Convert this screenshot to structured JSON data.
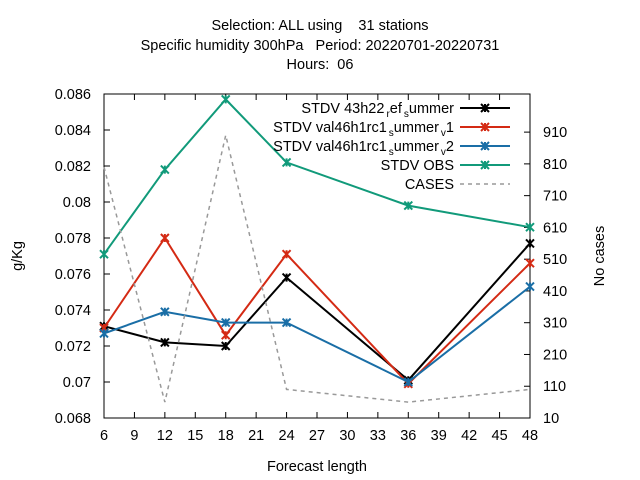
{
  "chart_data": {
    "type": "line",
    "title_lines": [
      "Selection: ALL using    31 stations",
      "Specific humidity 300hPa   Period: 20220701-20220731",
      "Hours:  06"
    ],
    "xlabel": "Forecast length",
    "ylabel": "g/Kg",
    "y2label": "No cases",
    "x_ticks": [
      6,
      9,
      12,
      15,
      18,
      21,
      24,
      27,
      30,
      33,
      36,
      39,
      42,
      45,
      48
    ],
    "xlim": [
      6,
      48
    ],
    "ylim": [
      0.068,
      0.086
    ],
    "y_ticks": [
      0.068,
      0.07,
      0.072,
      0.074,
      0.076,
      0.078,
      0.08,
      0.082,
      0.084,
      0.086
    ],
    "y_tick_labels": [
      "0.068",
      "0.07",
      "0.072",
      "0.074",
      "0.076",
      "0.078",
      "0.08",
      "0.082",
      "0.084",
      "0.086"
    ],
    "y2lim": [
      10,
      1030
    ],
    "y2_ticks": [
      10,
      110,
      210,
      310,
      410,
      510,
      610,
      710,
      810,
      910
    ],
    "grid": false,
    "legend_position": "top-right",
    "x": [
      6,
      12,
      18,
      24,
      36,
      48
    ],
    "series": [
      {
        "name": "STDV 43h22_ref_summer",
        "legend": [
          "STDV 43h22",
          "r",
          "ef",
          "s",
          "ummer"
        ],
        "color": "#000000",
        "marker": "x",
        "dash": false,
        "axis": "y",
        "values": [
          0.0731,
          0.0722,
          0.072,
          0.0758,
          0.0701,
          0.0777
        ]
      },
      {
        "name": "STDV val46h1rc1_summer_v1",
        "legend": [
          "STDV val46h1rc1",
          "s",
          "ummer",
          "v",
          "1"
        ],
        "color": "#d42a14",
        "marker": "x",
        "dash": false,
        "axis": "y",
        "values": [
          0.073,
          0.078,
          0.0726,
          0.0771,
          0.0699,
          0.0766
        ]
      },
      {
        "name": "STDV val46h1rc1_summer_v2",
        "legend": [
          "STDV val46h1rc1",
          "s",
          "ummer",
          "v",
          "2"
        ],
        "color": "#1a6ea6",
        "marker": "x",
        "dash": false,
        "axis": "y",
        "values": [
          0.0727,
          0.0739,
          0.0733,
          0.0733,
          0.07,
          0.0753
        ]
      },
      {
        "name": "STDV OBS",
        "legend": [
          "STDV OBS"
        ],
        "color": "#119a7a",
        "marker": "x",
        "dash": false,
        "axis": "y",
        "values": [
          0.0771,
          0.0818,
          0.0857,
          0.0822,
          0.0798,
          0.0786
        ]
      },
      {
        "name": "CASES",
        "legend": [
          "CASES"
        ],
        "color": "#999999",
        "marker": "none",
        "dash": true,
        "axis": "y2",
        "values": [
          800,
          60,
          900,
          100,
          60,
          100
        ]
      }
    ]
  }
}
